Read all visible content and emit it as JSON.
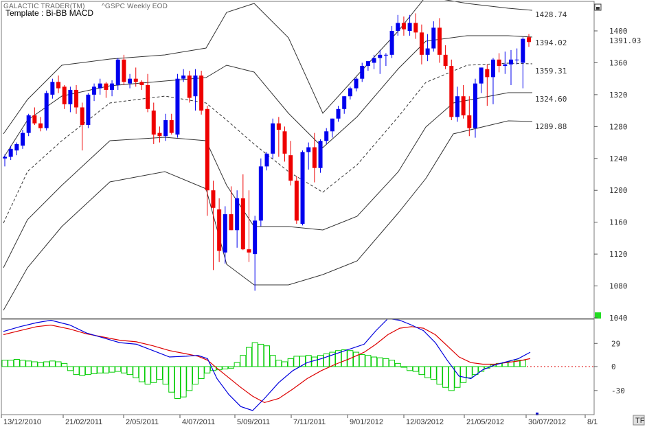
{
  "header": {
    "app_title": "GALACTIC TRADER(TM)",
    "symbol_title": "^GSPC Weekly EOD",
    "template_label": "Template : Bi-BB MACD"
  },
  "corner_badge": "TF",
  "chart_data": [
    {
      "type": "candlestick",
      "title": "^GSPC Weekly EOD",
      "yticks": [
        1040,
        1080,
        1120,
        1160,
        1200,
        1240,
        1280,
        1320,
        1360,
        1400
      ],
      "ylim": [
        1040,
        1440
      ],
      "last_price": "1391.03",
      "colors": {
        "up": "#0000ee",
        "down": "#ee0000",
        "band": "#333333"
      },
      "band_labels": [
        "1428.74",
        "1394.02",
        "1359.31",
        "1324.60",
        "1289.88"
      ],
      "ohlc": [
        [
          1240,
          1245,
          1230,
          1242
        ],
        [
          1242,
          1256,
          1238,
          1252
        ],
        [
          1250,
          1260,
          1244,
          1258
        ],
        [
          1256,
          1276,
          1252,
          1272
        ],
        [
          1272,
          1296,
          1268,
          1294
        ],
        [
          1294,
          1304,
          1282,
          1284
        ],
        [
          1284,
          1292,
          1274,
          1278
        ],
        [
          1278,
          1325,
          1275,
          1322
        ],
        [
          1320,
          1340,
          1315,
          1336
        ],
        [
          1336,
          1344,
          1322,
          1328
        ],
        [
          1330,
          1332,
          1302,
          1308
        ],
        [
          1308,
          1330,
          1298,
          1326
        ],
        [
          1326,
          1332,
          1296,
          1304
        ],
        [
          1304,
          1310,
          1250,
          1282
        ],
        [
          1282,
          1322,
          1278,
          1320
        ],
        [
          1320,
          1334,
          1312,
          1330
        ],
        [
          1328,
          1340,
          1320,
          1334
        ],
        [
          1334,
          1336,
          1316,
          1326
        ],
        [
          1326,
          1338,
          1318,
          1334
        ],
        [
          1332,
          1366,
          1326,
          1364
        ],
        [
          1364,
          1370,
          1332,
          1336
        ],
        [
          1334,
          1346,
          1328,
          1340
        ],
        [
          1340,
          1354,
          1330,
          1336
        ],
        [
          1336,
          1338,
          1326,
          1332
        ],
        [
          1332,
          1346,
          1298,
          1302
        ],
        [
          1300,
          1310,
          1258,
          1270
        ],
        [
          1272,
          1280,
          1260,
          1268
        ],
        [
          1268,
          1296,
          1262,
          1288
        ],
        [
          1288,
          1296,
          1270,
          1272
        ],
        [
          1270,
          1346,
          1266,
          1340
        ],
        [
          1340,
          1352,
          1336,
          1344
        ],
        [
          1344,
          1350,
          1310,
          1316
        ],
        [
          1318,
          1352,
          1300,
          1344
        ],
        [
          1344,
          1350,
          1295,
          1300
        ],
        [
          1302,
          1306,
          1168,
          1200
        ],
        [
          1200,
          1212,
          1100,
          1178
        ],
        [
          1176,
          1190,
          1110,
          1124
        ],
        [
          1122,
          1180,
          1108,
          1170
        ],
        [
          1170,
          1205,
          1150,
          1150
        ],
        [
          1150,
          1200,
          1128,
          1190
        ],
        [
          1190,
          1220,
          1125,
          1126
        ],
        [
          1126,
          1200,
          1110,
          1122
        ],
        [
          1120,
          1168,
          1074,
          1162
        ],
        [
          1162,
          1240,
          1155,
          1230
        ],
        [
          1230,
          1248,
          1225,
          1246
        ],
        [
          1246,
          1290,
          1240,
          1284
        ],
        [
          1284,
          1292,
          1242,
          1276
        ],
        [
          1274,
          1280,
          1236,
          1246
        ],
        [
          1244,
          1262,
          1206,
          1212
        ],
        [
          1212,
          1218,
          1158,
          1162
        ],
        [
          1158,
          1250,
          1156,
          1248
        ],
        [
          1248,
          1260,
          1226,
          1254
        ],
        [
          1254,
          1272,
          1210,
          1228
        ],
        [
          1228,
          1264,
          1222,
          1262
        ],
        [
          1262,
          1278,
          1258,
          1274
        ],
        [
          1274,
          1290,
          1266,
          1290
        ],
        [
          1290,
          1306,
          1286,
          1302
        ],
        [
          1302,
          1318,
          1296,
          1318
        ],
        [
          1318,
          1330,
          1314,
          1328
        ],
        [
          1328,
          1342,
          1324,
          1340
        ],
        [
          1340,
          1360,
          1336,
          1356
        ],
        [
          1356,
          1362,
          1350,
          1362
        ],
        [
          1360,
          1370,
          1352,
          1366
        ],
        [
          1366,
          1376,
          1346,
          1370
        ],
        [
          1370,
          1372,
          1356,
          1370
        ],
        [
          1370,
          1406,
          1366,
          1400
        ],
        [
          1400,
          1420,
          1394,
          1410
        ],
        [
          1410,
          1418,
          1394,
          1402
        ],
        [
          1400,
          1420,
          1394,
          1410
        ],
        [
          1410,
          1422,
          1390,
          1398
        ],
        [
          1398,
          1408,
          1358,
          1370
        ],
        [
          1370,
          1396,
          1362,
          1378
        ],
        [
          1378,
          1412,
          1374,
          1404
        ],
        [
          1404,
          1416,
          1360,
          1370
        ],
        [
          1370,
          1382,
          1352,
          1356
        ],
        [
          1356,
          1364,
          1288,
          1292
        ],
        [
          1292,
          1330,
          1286,
          1318
        ],
        [
          1318,
          1332,
          1290,
          1294
        ],
        [
          1294,
          1318,
          1268,
          1278
        ],
        [
          1278,
          1340,
          1266,
          1334
        ],
        [
          1334,
          1354,
          1322,
          1354
        ],
        [
          1352,
          1358,
          1306,
          1342
        ],
        [
          1342,
          1366,
          1308,
          1364
        ],
        [
          1364,
          1372,
          1348,
          1356
        ],
        [
          1356,
          1374,
          1346,
          1358
        ],
        [
          1358,
          1376,
          1332,
          1364
        ],
        [
          1364,
          1378,
          1358,
          1364
        ],
        [
          1360,
          1392,
          1328,
          1390
        ],
        [
          1392,
          1396,
          1380,
          1386
        ]
      ]
    },
    {
      "type": "line",
      "title": "MACD",
      "yticks": [
        29,
        0,
        -30
      ],
      "ylim": [
        -55,
        60
      ],
      "colors": {
        "macd": "#0000dd",
        "signal": "#dd0000",
        "histogram": "#00cc00"
      },
      "macd": [
        [
          0,
          44
        ],
        [
          7,
          50
        ],
        [
          14,
          55
        ],
        [
          20,
          58
        ],
        [
          28,
          52
        ],
        [
          35,
          42
        ],
        [
          42,
          36
        ],
        [
          49,
          30
        ],
        [
          56,
          28
        ],
        [
          63,
          20
        ],
        [
          70,
          12
        ],
        [
          77,
          13
        ],
        [
          82,
          14
        ],
        [
          86,
          10
        ],
        [
          90,
          -15
        ],
        [
          95,
          -35
        ],
        [
          100,
          -50
        ],
        [
          105,
          -55
        ],
        [
          110,
          -40
        ],
        [
          116,
          -20
        ],
        [
          122,
          -5
        ],
        [
          128,
          5
        ],
        [
          134,
          10
        ],
        [
          140,
          16
        ],
        [
          146,
          22
        ],
        [
          152,
          28
        ],
        [
          157,
          45
        ],
        [
          162,
          60
        ],
        [
          167,
          58
        ],
        [
          172,
          52
        ],
        [
          177,
          45
        ],
        [
          182,
          30
        ],
        [
          187,
          8
        ],
        [
          192,
          -12
        ],
        [
          197,
          -15
        ],
        [
          202,
          -4
        ],
        [
          207,
          2
        ],
        [
          212,
          6
        ],
        [
          217,
          10
        ],
        [
          222,
          18
        ]
      ],
      "signal": [
        [
          0,
          40
        ],
        [
          7,
          45
        ],
        [
          14,
          50
        ],
        [
          20,
          52
        ],
        [
          28,
          47
        ],
        [
          35,
          41
        ],
        [
          42,
          37
        ],
        [
          49,
          33
        ],
        [
          56,
          31
        ],
        [
          63,
          26
        ],
        [
          70,
          20
        ],
        [
          77,
          16
        ],
        [
          82,
          13
        ],
        [
          86,
          8
        ],
        [
          90,
          -2
        ],
        [
          95,
          -14
        ],
        [
          100,
          -26
        ],
        [
          105,
          -37
        ],
        [
          110,
          -45
        ],
        [
          116,
          -40
        ],
        [
          122,
          -28
        ],
        [
          128,
          -15
        ],
        [
          134,
          -5
        ],
        [
          140,
          3
        ],
        [
          146,
          10
        ],
        [
          152,
          18
        ],
        [
          157,
          28
        ],
        [
          162,
          40
        ],
        [
          167,
          48
        ],
        [
          172,
          50
        ],
        [
          177,
          48
        ],
        [
          182,
          40
        ],
        [
          187,
          26
        ],
        [
          192,
          12
        ],
        [
          197,
          5
        ],
        [
          202,
          3
        ],
        [
          207,
          3
        ],
        [
          212,
          5
        ],
        [
          217,
          7
        ],
        [
          222,
          10
        ]
      ],
      "histogram": [
        8,
        8,
        9,
        8,
        7,
        6,
        5,
        6,
        7,
        6,
        4,
        -5,
        -10,
        -11,
        -10,
        -9,
        -8,
        -8,
        -7,
        -6,
        -8,
        -10,
        -14,
        -19,
        -22,
        -20,
        -16,
        -22,
        -32,
        -40,
        -38,
        -30,
        -22,
        -15,
        -8,
        -5,
        -4,
        -3,
        -2,
        5,
        14,
        24,
        30,
        28,
        26,
        14,
        8,
        6,
        10,
        13,
        13,
        14,
        12,
        14,
        16,
        18,
        20,
        21,
        20,
        18,
        15,
        14,
        12,
        11,
        10,
        8,
        4,
        0,
        -5,
        -6,
        -10,
        -14,
        -16,
        -22,
        -26,
        -30,
        -26,
        -20,
        -14,
        -10,
        -6,
        -2,
        2,
        4,
        5,
        6,
        8,
        8
      ]
    }
  ],
  "x_axis": {
    "labels": [
      "13/12/2010",
      "21/02/2011",
      "2/05/2011",
      "4/07/2011",
      "5/09/2011",
      "7/11/2011",
      "9/01/2012",
      "12/03/2012",
      "21/05/2012",
      "30/07/2012",
      "8/1"
    ]
  }
}
